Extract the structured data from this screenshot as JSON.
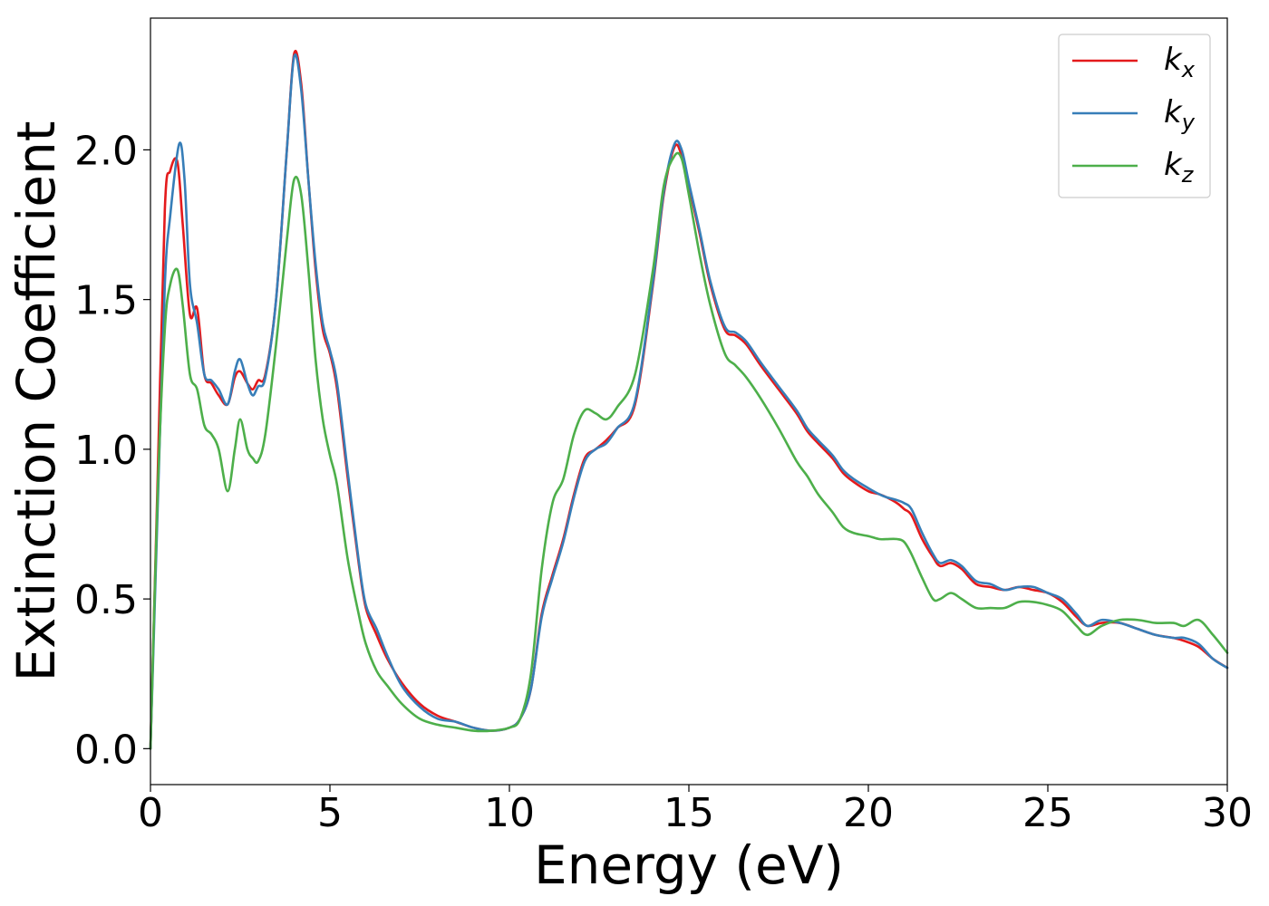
{
  "chart_data": {
    "type": "line",
    "title": "",
    "xlabel": "Energy (eV)",
    "ylabel": "Extinction Coefficient",
    "xlim": [
      0,
      30
    ],
    "ylim": [
      -0.12,
      2.44
    ],
    "xticks": [
      "0",
      "5",
      "10",
      "15",
      "20",
      "25",
      "30"
    ],
    "yticks": [
      "0.0",
      "0.5",
      "1.0",
      "1.5",
      "2.0"
    ],
    "grid": false,
    "legend_position": "top-right",
    "series": [
      {
        "name": "k_x",
        "label_base": "k",
        "label_sub": "x",
        "color": "#e41a1c",
        "x": [
          0,
          0.2,
          0.4,
          0.55,
          0.75,
          0.9,
          1.1,
          1.3,
          1.5,
          1.7,
          1.9,
          2.15,
          2.35,
          2.5,
          2.7,
          2.85,
          3.0,
          3.2,
          3.5,
          3.8,
          4.0,
          4.2,
          4.4,
          4.6,
          4.8,
          5.0,
          5.2,
          5.5,
          5.8,
          6.0,
          6.3,
          6.6,
          7.0,
          7.5,
          8.0,
          8.5,
          9.0,
          9.5,
          10.0,
          10.3,
          10.6,
          10.9,
          11.2,
          11.5,
          11.8,
          12.1,
          12.4,
          12.7,
          13.0,
          13.5,
          14.0,
          14.3,
          14.6,
          14.8,
          15.0,
          15.3,
          15.6,
          16.0,
          16.3,
          16.6,
          17.0,
          17.5,
          18.0,
          18.3,
          18.6,
          19.0,
          19.3,
          19.6,
          20.0,
          20.3,
          20.5,
          20.8,
          21.0,
          21.2,
          21.5,
          21.8,
          22.0,
          22.3,
          22.6,
          23.0,
          23.4,
          23.8,
          24.2,
          24.6,
          25.0,
          25.4,
          25.8,
          26.1,
          26.5,
          27.0,
          27.5,
          28.0,
          28.5,
          28.8,
          29.2,
          29.6,
          30.0
        ],
        "values": [
          0,
          0.9,
          1.8,
          1.93,
          1.96,
          1.75,
          1.45,
          1.47,
          1.25,
          1.22,
          1.18,
          1.15,
          1.24,
          1.26,
          1.22,
          1.2,
          1.23,
          1.25,
          1.5,
          2.0,
          2.32,
          2.22,
          1.9,
          1.6,
          1.4,
          1.32,
          1.2,
          0.9,
          0.62,
          0.47,
          0.38,
          0.3,
          0.22,
          0.15,
          0.11,
          0.09,
          0.07,
          0.06,
          0.07,
          0.1,
          0.2,
          0.45,
          0.58,
          0.7,
          0.85,
          0.97,
          1.0,
          1.03,
          1.07,
          1.15,
          1.55,
          1.85,
          2.01,
          1.98,
          1.88,
          1.72,
          1.55,
          1.4,
          1.38,
          1.35,
          1.28,
          1.2,
          1.12,
          1.06,
          1.02,
          0.97,
          0.92,
          0.89,
          0.86,
          0.85,
          0.84,
          0.82,
          0.8,
          0.78,
          0.7,
          0.64,
          0.61,
          0.62,
          0.6,
          0.55,
          0.54,
          0.53,
          0.54,
          0.53,
          0.52,
          0.49,
          0.44,
          0.41,
          0.42,
          0.42,
          0.4,
          0.38,
          0.37,
          0.36,
          0.34,
          0.3,
          0.27
        ]
      },
      {
        "name": "k_y",
        "label_base": "k",
        "label_sub": "y",
        "color": "#377eb8",
        "x": [
          0,
          0.2,
          0.4,
          0.55,
          0.8,
          0.95,
          1.1,
          1.3,
          1.5,
          1.7,
          1.9,
          2.15,
          2.35,
          2.5,
          2.7,
          2.85,
          3.0,
          3.2,
          3.5,
          3.8,
          4.0,
          4.2,
          4.4,
          4.6,
          4.8,
          5.0,
          5.2,
          5.5,
          5.8,
          6.0,
          6.3,
          6.6,
          7.0,
          7.5,
          8.0,
          8.5,
          9.0,
          9.5,
          10.0,
          10.3,
          10.6,
          10.9,
          11.2,
          11.5,
          11.8,
          12.1,
          12.4,
          12.7,
          13.0,
          13.5,
          14.0,
          14.3,
          14.6,
          14.8,
          15.0,
          15.3,
          15.6,
          16.0,
          16.3,
          16.6,
          17.0,
          17.5,
          18.0,
          18.3,
          18.6,
          19.0,
          19.3,
          19.6,
          20.0,
          20.3,
          20.5,
          20.8,
          21.0,
          21.2,
          21.5,
          21.8,
          22.0,
          22.3,
          22.6,
          23.0,
          23.4,
          23.8,
          24.2,
          24.6,
          25.0,
          25.4,
          25.8,
          26.1,
          26.5,
          27.0,
          27.5,
          28.0,
          28.5,
          28.8,
          29.2,
          29.6,
          30.0
        ],
        "values": [
          0,
          0.8,
          1.55,
          1.78,
          2.02,
          1.9,
          1.55,
          1.42,
          1.25,
          1.23,
          1.2,
          1.15,
          1.26,
          1.3,
          1.22,
          1.18,
          1.21,
          1.24,
          1.5,
          2.0,
          2.31,
          2.2,
          1.9,
          1.62,
          1.42,
          1.33,
          1.22,
          0.92,
          0.63,
          0.48,
          0.4,
          0.31,
          0.21,
          0.14,
          0.1,
          0.09,
          0.07,
          0.06,
          0.07,
          0.1,
          0.2,
          0.44,
          0.57,
          0.69,
          0.84,
          0.96,
          1.0,
          1.02,
          1.07,
          1.16,
          1.56,
          1.86,
          2.02,
          2.0,
          1.89,
          1.73,
          1.56,
          1.41,
          1.39,
          1.36,
          1.29,
          1.21,
          1.13,
          1.07,
          1.03,
          0.98,
          0.93,
          0.9,
          0.87,
          0.85,
          0.84,
          0.83,
          0.82,
          0.8,
          0.72,
          0.65,
          0.62,
          0.63,
          0.61,
          0.56,
          0.55,
          0.53,
          0.54,
          0.54,
          0.52,
          0.5,
          0.45,
          0.41,
          0.43,
          0.42,
          0.4,
          0.38,
          0.37,
          0.37,
          0.35,
          0.3,
          0.27
        ]
      },
      {
        "name": "k_z",
        "label_base": "k",
        "label_sub": "z",
        "color": "#4daf4a",
        "x": [
          0,
          0.2,
          0.4,
          0.55,
          0.75,
          0.9,
          1.1,
          1.3,
          1.5,
          1.7,
          1.9,
          2.15,
          2.35,
          2.5,
          2.7,
          2.85,
          3.0,
          3.2,
          3.5,
          3.8,
          4.0,
          4.2,
          4.4,
          4.6,
          4.8,
          5.0,
          5.2,
          5.5,
          5.8,
          6.0,
          6.3,
          6.6,
          7.0,
          7.5,
          8.0,
          8.5,
          9.0,
          9.5,
          10.0,
          10.3,
          10.6,
          10.9,
          11.2,
          11.5,
          11.8,
          12.1,
          12.4,
          12.7,
          13.0,
          13.5,
          14.0,
          14.3,
          14.6,
          14.8,
          15.0,
          15.3,
          15.6,
          16.0,
          16.3,
          16.6,
          17.0,
          17.5,
          18.0,
          18.3,
          18.6,
          19.0,
          19.3,
          19.6,
          20.0,
          20.3,
          20.5,
          20.8,
          21.0,
          21.2,
          21.5,
          21.8,
          22.0,
          22.3,
          22.6,
          23.0,
          23.4,
          23.8,
          24.2,
          24.6,
          25.0,
          25.4,
          25.8,
          26.1,
          26.5,
          27.0,
          27.5,
          28.0,
          28.5,
          28.8,
          29.2,
          29.6,
          30.0
        ],
        "values": [
          0,
          0.85,
          1.4,
          1.55,
          1.6,
          1.48,
          1.25,
          1.2,
          1.08,
          1.05,
          1.0,
          0.86,
          1.0,
          1.1,
          1.0,
          0.97,
          0.96,
          1.05,
          1.35,
          1.7,
          1.9,
          1.85,
          1.6,
          1.3,
          1.1,
          0.98,
          0.88,
          0.63,
          0.45,
          0.35,
          0.26,
          0.21,
          0.15,
          0.1,
          0.08,
          0.07,
          0.06,
          0.06,
          0.07,
          0.1,
          0.25,
          0.6,
          0.82,
          0.9,
          1.05,
          1.13,
          1.12,
          1.1,
          1.14,
          1.25,
          1.6,
          1.88,
          1.98,
          1.97,
          1.85,
          1.65,
          1.48,
          1.32,
          1.28,
          1.24,
          1.17,
          1.07,
          0.96,
          0.91,
          0.85,
          0.79,
          0.74,
          0.72,
          0.71,
          0.7,
          0.7,
          0.7,
          0.69,
          0.65,
          0.57,
          0.5,
          0.5,
          0.52,
          0.5,
          0.47,
          0.47,
          0.47,
          0.49,
          0.49,
          0.48,
          0.46,
          0.41,
          0.38,
          0.41,
          0.43,
          0.43,
          0.42,
          0.42,
          0.41,
          0.43,
          0.38,
          0.32
        ]
      }
    ]
  }
}
